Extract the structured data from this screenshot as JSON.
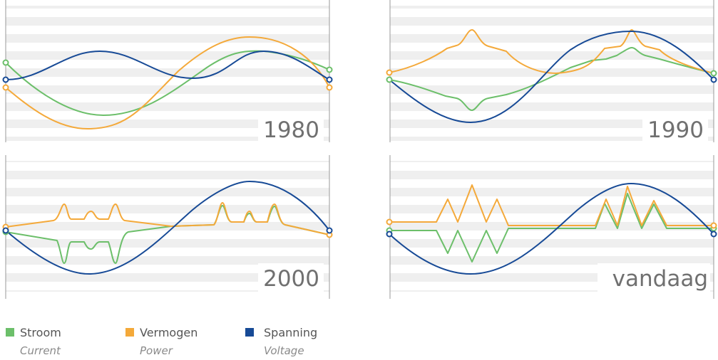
{
  "panels": [
    {
      "label": "1980"
    },
    {
      "label": "1990"
    },
    {
      "label": "2000"
    },
    {
      "label": "vandaag"
    }
  ],
  "legend": [
    {
      "name": "Stroom",
      "translation": "Current"
    },
    {
      "name": "Vermogen",
      "translation": "Power"
    },
    {
      "name": "Spanning",
      "translation": "Voltage"
    }
  ]
}
